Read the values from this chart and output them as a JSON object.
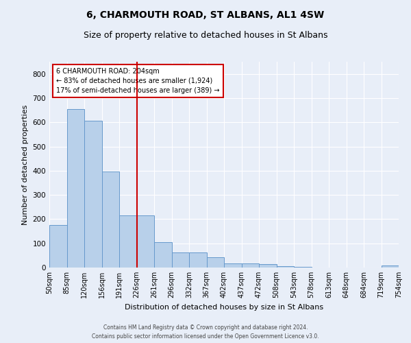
{
  "title": "6, CHARMOUTH ROAD, ST ALBANS, AL1 4SW",
  "subtitle": "Size of property relative to detached houses in St Albans",
  "xlabel": "Distribution of detached houses by size in St Albans",
  "ylabel": "Number of detached properties",
  "footer_line1": "Contains HM Land Registry data © Crown copyright and database right 2024.",
  "footer_line2": "Contains public sector information licensed under the Open Government Licence v3.0.",
  "bar_values": [
    175,
    655,
    605,
    398,
    215,
    215,
    105,
    63,
    63,
    43,
    16,
    16,
    15,
    7,
    2,
    0,
    0,
    0,
    0,
    8
  ],
  "bar_labels": [
    "50sqm",
    "85sqm",
    "120sqm",
    "156sqm",
    "191sqm",
    "226sqm",
    "261sqm",
    "296sqm",
    "332sqm",
    "367sqm",
    "402sqm",
    "437sqm",
    "472sqm",
    "508sqm",
    "543sqm",
    "578sqm",
    "613sqm",
    "648sqm",
    "684sqm",
    "719sqm",
    "754sqm"
  ],
  "bar_color": "#b8d0ea",
  "bar_edge_color": "#6699cc",
  "highlight_color": "#cc0000",
  "annotation_text": "6 CHARMOUTH ROAD: 204sqm\n← 83% of detached houses are smaller (1,924)\n17% of semi-detached houses are larger (389) →",
  "annotation_box_color": "#cc0000",
  "ylim": [
    0,
    850
  ],
  "yticks": [
    0,
    100,
    200,
    300,
    400,
    500,
    600,
    700,
    800
  ],
  "bg_color": "#e8eef8",
  "plot_bg_color": "#e8eef8",
  "grid_color": "#ffffff",
  "title_fontsize": 10,
  "subtitle_fontsize": 9,
  "ylabel_fontsize": 8,
  "xlabel_fontsize": 8,
  "tick_fontsize": 7,
  "footer_fontsize": 5.5,
  "annotation_fontsize": 7
}
